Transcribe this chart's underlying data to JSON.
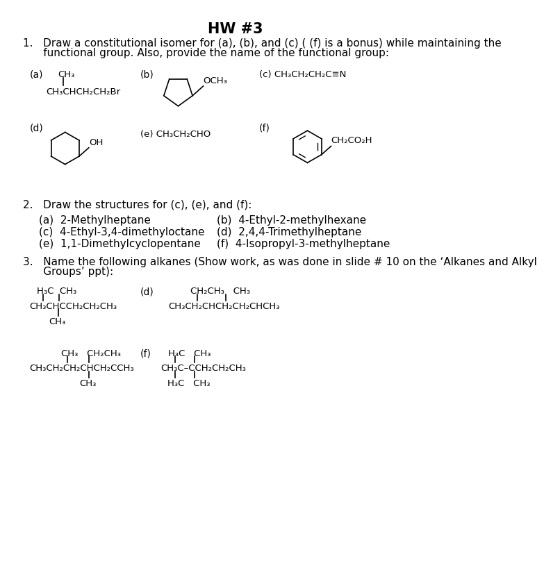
{
  "title": "HW #3",
  "bg_color": "#ffffff",
  "title_fontsize": 15,
  "body_fontsize": 11,
  "small_fontsize": 10,
  "chem_fontsize": 9.5,
  "q1_header_line1": "1.   Draw a constitutional isomer for (a), (b), and (c) ( (f) is a bonus) while maintaining the",
  "q1_header_line2": "      functional group. Also, provide the name of the functional group:",
  "q2_header": "2.   Draw the structures for (c), (e), and (f):",
  "q2_items_left": [
    "(a)  2-Methylheptane",
    "(c)  4-Ethyl-3,4-dimethyloctane",
    "(e)  1,1-Dimethylcyclopentane"
  ],
  "q2_items_right": [
    "(b)  4-Ethyl-2-methylhexane",
    "(d)  2,4,4-Trimethylheptane",
    "(f)  4-Isopropyl-3-methylheptane"
  ],
  "q3_header_line1": "3.   Name the following alkanes (Show work, as was done in slide # 10 on the ‘Alkanes and Alkyl",
  "q3_header_line2": "      Groups’ ppt):"
}
